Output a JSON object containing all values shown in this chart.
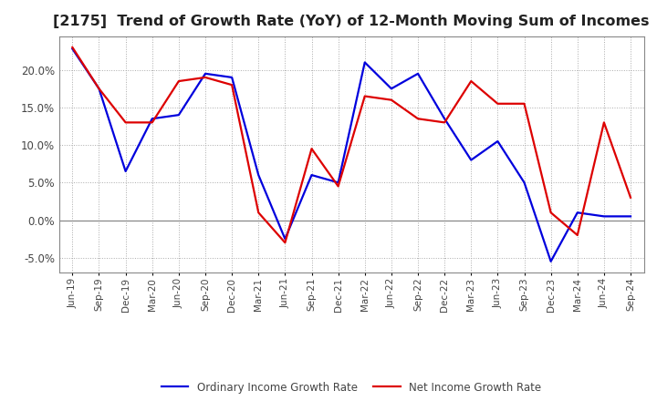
{
  "title": "[2175]  Trend of Growth Rate (YoY) of 12-Month Moving Sum of Incomes",
  "title_fontsize": 11.5,
  "ylim": [
    -0.07,
    0.245
  ],
  "yticks": [
    -0.05,
    0.0,
    0.05,
    0.1,
    0.15,
    0.2
  ],
  "background_color": "#ffffff",
  "grid_color": "#aaaaaa",
  "x_labels": [
    "Jun-19",
    "Sep-19",
    "Dec-19",
    "Mar-20",
    "Jun-20",
    "Sep-20",
    "Dec-20",
    "Mar-21",
    "Jun-21",
    "Sep-21",
    "Dec-21",
    "Mar-22",
    "Jun-22",
    "Sep-22",
    "Dec-22",
    "Mar-23",
    "Jun-23",
    "Sep-23",
    "Dec-23",
    "Mar-24",
    "Jun-24",
    "Sep-24"
  ],
  "ordinary_income": [
    0.228,
    0.175,
    0.065,
    0.135,
    0.14,
    0.195,
    0.19,
    0.06,
    -0.025,
    0.06,
    0.05,
    0.21,
    0.175,
    0.195,
    0.135,
    0.08,
    0.105,
    0.05,
    -0.055,
    0.01,
    0.005,
    0.005
  ],
  "net_income": [
    0.23,
    0.175,
    0.13,
    0.13,
    0.185,
    0.19,
    0.18,
    0.01,
    -0.03,
    0.095,
    0.045,
    0.165,
    0.16,
    0.135,
    0.13,
    0.185,
    0.155,
    0.155,
    0.01,
    -0.02,
    0.13,
    0.03
  ],
  "ordinary_color": "#0000dd",
  "net_color": "#dd0000",
  "line_width": 1.6,
  "legend_labels": [
    "Ordinary Income Growth Rate",
    "Net Income Growth Rate"
  ]
}
